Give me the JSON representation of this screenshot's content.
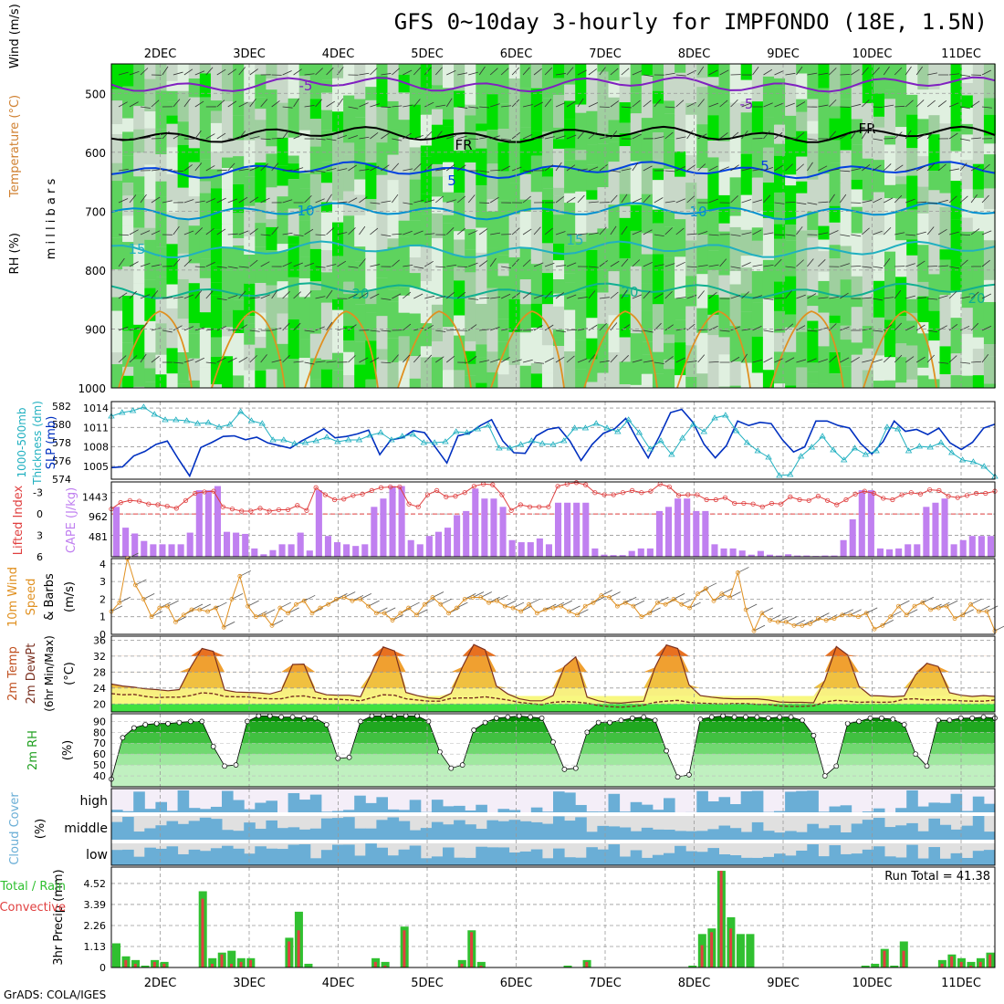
{
  "title": "GFS 0~10day 3-hourly for IMPFONDO (18E, 1.5N)",
  "credit": "GrADS: COLA/IGES",
  "dates": [
    "2DEC",
    "3DEC",
    "4DEC",
    "5DEC",
    "6DEC",
    "7DEC",
    "8DEC",
    "9DEC",
    "10DEC",
    "11DEC"
  ],
  "colors": {
    "rh_light": "#e0f0e0",
    "rh_mid": "#c8d8c8",
    "rh_green": "#5ed35e",
    "rh_bright": "#00e000",
    "cape": "#c080f0",
    "li": "#e04040",
    "slp": "#0030c0",
    "thick": "#20b0c0",
    "wind": "#e09020",
    "temp_hot": "#e05000",
    "temp_mid": "#f0a030",
    "temp_low": "#f8f080",
    "rh_dark": "#008000",
    "cloud": "#6aaed6",
    "precip": "#30c030",
    "conv": "#e04040"
  },
  "chart_data": [
    {
      "type": "heatmap",
      "name": "RH, Temperature, Wind",
      "ylabel": "millibars",
      "yticks": [
        500,
        600,
        700,
        800,
        900,
        1000
      ],
      "ylim": [
        1000,
        450
      ],
      "legend_labels": [
        "RH (%)",
        "Temperature (°C)",
        "Wind (m/s)"
      ],
      "contour_labels": [
        "-5",
        "FR",
        "5",
        "10",
        "15",
        "20"
      ],
      "isotherms": [
        {
          "label": "-5",
          "color": "#8020c0",
          "p_mean": 485
        },
        {
          "label": "FR",
          "color": "#000000",
          "p_mean": 570
        },
        {
          "label": "5",
          "color": "#0040e0",
          "p_mean": 630
        },
        {
          "label": "10",
          "color": "#0090d0",
          "p_mean": 700
        },
        {
          "label": "15",
          "color": "#20b0c0",
          "p_mean": 765
        },
        {
          "label": "20",
          "color": "#10b090",
          "p_mean": 835
        }
      ]
    },
    {
      "type": "line",
      "name": "SLP and 1000-500mb thickness",
      "ylabel_left": "1000-500mb Thickness (dm)",
      "ylabel_right": "SLP (mb)",
      "left_ticks": [
        574,
        576,
        578,
        580,
        582
      ],
      "right_ticks": [
        1005,
        1008,
        1011,
        1014
      ],
      "ylim_slp": [
        1003,
        1015
      ],
      "ylim_thick": [
        574,
        582.5
      ],
      "series": [
        {
          "name": "SLP",
          "values": [
            1004.8,
            1004.9,
            1006.6,
            1007.3,
            1008.4,
            1008.9,
            1006.1,
            1003.5,
            1007.9,
            1008.7,
            1009.6,
            1009.7,
            1009.1,
            1009.5,
            1008.6,
            1008.2,
            1007.8,
            1008.9,
            1009.8,
            1010.8,
            1009.4,
            1009.6,
            1010.0,
            1010.6,
            1006.8,
            1009.1,
            1009.4,
            1010.5,
            1010.2,
            1007.9,
            1005.5,
            1009.7,
            1010.1,
            1011.3,
            1012.2,
            1008.9,
            1007.1,
            1007.0,
            1009.7,
            1010.7,
            1011.0,
            1008.9,
            1005.9,
            1008.4,
            1010.1,
            1010.8,
            1012.4,
            1009.2,
            1006.3,
            1009.6,
            1013.3,
            1013.8,
            1011.8,
            1008.4,
            1006.3,
            1008.2,
            1012.0,
            1011.3,
            1011.8,
            1011.6,
            1009.1,
            1007.2,
            1008.0,
            1012.0,
            1012.0,
            1011.3,
            1010.9,
            1008.5,
            1006.9,
            1008.8,
            1012.0,
            1010.4,
            1010.7,
            1009.9,
            1010.9,
            1008.6,
            1007.6,
            1008.7,
            1010.9,
            1011.5
          ]
        },
        {
          "name": "Thickness",
          "values": [
            580.9,
            581.3,
            581.5,
            581.9,
            581.1,
            580.5,
            580.5,
            580.4,
            580.1,
            580.2,
            579.7,
            580.0,
            581.4,
            580.4,
            580.1,
            578.3,
            578.3,
            577.9,
            578.0,
            578.2,
            578.6,
            578.1,
            578.3,
            578.3,
            578.8,
            579.1,
            578.3,
            578.7,
            578.9,
            578.0,
            578.0,
            578.1,
            579.2,
            579.1,
            579.5,
            579.9,
            577.4,
            577.4,
            577.8,
            578.2,
            577.9,
            577.8,
            578.2,
            579.6,
            579.6,
            580.1,
            579.6,
            579.2,
            580.5,
            579.1,
            577.3,
            578.2,
            576.7,
            578.5,
            580.0,
            579.2,
            580.7,
            581.0,
            579.3,
            578.0,
            577.1,
            576.4,
            574.4,
            574.5,
            576.5,
            577.5,
            578.7,
            577.2,
            576.1,
            577.4,
            576.7,
            577.1,
            579.7,
            579.5,
            577.1,
            577.6,
            577.5,
            578.0,
            576.9,
            576.1,
            575.9,
            575.4,
            574.3
          ]
        }
      ]
    },
    {
      "type": "bar",
      "name": "Lifted Index and CAPE",
      "ylabel_left": "Lifted Index",
      "ylabel_right": "CAPE (J/kg)",
      "li_ticks": [
        -3,
        0,
        3,
        6
      ],
      "cape_ticks": [
        481,
        962,
        1443
      ],
      "cape_values": [
        1200,
        700,
        560,
        380,
        300,
        300,
        300,
        300,
        580,
        1600,
        1600,
        1700,
        600,
        580,
        550,
        200,
        60,
        160,
        300,
        300,
        580,
        150,
        1600,
        500,
        350,
        300,
        260,
        300,
        1200,
        1400,
        1700,
        1700,
        400,
        300,
        500,
        600,
        700,
        1000,
        1100,
        1640,
        1400,
        1400,
        1200,
        400,
        350,
        350,
        440,
        300,
        1300,
        1300,
        1300,
        1300,
        200,
        50,
        40,
        40,
        140,
        200,
        200,
        1100,
        1200,
        1400,
        1400,
        1100,
        1100,
        300,
        200,
        200,
        150,
        50,
        140,
        50,
        30,
        60,
        30,
        30,
        20,
        30,
        30,
        400,
        900,
        1600,
        1600,
        200,
        180,
        200,
        300,
        300,
        1200,
        1300,
        1400,
        300,
        400,
        500,
        500,
        500
      ],
      "li_values": [
        -0.7,
        -1.6,
        -1.9,
        -1.8,
        -1.4,
        -1.3,
        -1.1,
        -0.8,
        -1.9,
        -2.9,
        -3.1,
        -3.2,
        -1.0,
        -0.7,
        -0.4,
        -0.4,
        -0.8,
        -0.4,
        -0.6,
        -0.6,
        -1.2,
        -0.5,
        -3.7,
        -2.7,
        -2.0,
        -2.1,
        -2.6,
        -2.8,
        -3.3,
        -3.7,
        -3.8,
        -3.8,
        -1.4,
        -1.0,
        -2.7,
        -3.3,
        -2.4,
        -2.5,
        -3.0,
        -3.9,
        -4.2,
        -4.1,
        -2.7,
        -0.5,
        -1.3,
        -1.0,
        -1.0,
        -1.0,
        -3.9,
        -4.2,
        -4.4,
        -4.1,
        -3.0,
        -2.7,
        -2.7,
        -3.0,
        -3.3,
        -3.0,
        -3.2,
        -4.2,
        -3.8,
        -2.6,
        -2.7,
        -2.7,
        -2.0,
        -2.0,
        -2.3,
        -1.5,
        -1.5,
        -1.4,
        -1.0,
        -1.5,
        -1.4,
        -2.4,
        -2.0,
        -1.9,
        -2.5,
        -1.9,
        -1.3,
        -2.0,
        -2.8,
        -3.2,
        -2.9,
        -2.2,
        -2.0,
        -2.7,
        -3.0,
        -2.8,
        -3.4,
        -3.3,
        -2.5,
        -2.3,
        -2.6,
        -2.9,
        -2.9,
        -3.2
      ]
    },
    {
      "type": "line",
      "name": "10m Wind Speed & Barbs",
      "ylabel": "10m Wind Speed & Barbs (m/s)",
      "yticks": [
        0,
        1,
        2,
        3,
        4
      ],
      "ylim": [
        0,
        4.3
      ],
      "values": [
        1.3,
        1.8,
        4.3,
        2.8,
        2.0,
        1.0,
        1.5,
        1.6,
        0.7,
        1.1,
        1.4,
        1.4,
        1.3,
        1.5,
        0.4,
        2.0,
        3.3,
        1.6,
        1.0,
        1.1,
        0.5,
        1.5,
        1.2,
        1.7,
        1.9,
        1.2,
        1.5,
        1.7,
        2.0,
        2.1,
        1.9,
        2.0,
        1.6,
        1.2,
        1.2,
        0.8,
        1.2,
        1.5,
        1.1,
        1.7,
        2.1,
        1.7,
        1.2,
        1.5,
        2.0,
        2.1,
        2.1,
        1.8,
        1.9,
        1.6,
        1.5,
        1.3,
        1.7,
        1.2,
        1.4,
        1.5,
        1.6,
        1.3,
        1.1,
        1.6,
        1.8,
        2.2,
        2.1,
        1.6,
        1.8,
        1.6,
        1.0,
        1.2,
        1.8,
        1.7,
        2.0,
        1.7,
        1.5,
        2.3,
        2.6,
        1.9,
        2.3,
        2.1,
        3.5,
        1.4,
        0.2,
        1.2,
        0.8,
        0.7,
        0.7,
        0.5,
        0.5,
        0.6,
        0.9,
        0.8,
        0.9,
        1.1,
        1.1,
        1.0,
        1.2,
        0.3,
        0.5,
        1.0,
        1.6,
        1.1,
        1.6,
        1.8,
        1.4,
        1.5,
        1.6,
        0.9,
        1.1,
        1.7,
        1.3,
        1.3,
        0.2
      ]
    },
    {
      "type": "area",
      "name": "2m Temp, 2m DewPt (6hr Min/Max)",
      "ylabel": "2m Temp 2m DewPt (6hr Min/Max) (°C)",
      "yticks": [
        20,
        24,
        28,
        32,
        36
      ],
      "ylim": [
        18,
        37
      ],
      "temp": [
        25.0,
        24.5,
        24.2,
        23.8,
        23.6,
        23.3,
        23.6,
        29.2,
        33.9,
        33.2,
        23.5,
        23.0,
        22.9,
        22.8,
        22.5,
        23.3,
        29.9,
        30.0,
        23.1,
        22.3,
        22.2,
        22.2,
        21.8,
        27.9,
        34.3,
        33.3,
        22.9,
        22.1,
        21.5,
        21.3,
        22.7,
        29.3,
        34.9,
        33.6,
        24.5,
        22.5,
        21.3,
        20.8,
        20.8,
        22.1,
        29.4,
        31.8,
        21.7,
        20.8,
        20.3,
        20.2,
        20.5,
        20.7,
        29.2,
        34.8,
        33.9,
        24.8,
        22.1,
        21.7,
        21.4,
        21.3,
        21.3,
        21.3,
        21.0,
        20.5,
        20.4,
        20.4,
        20.3,
        26.0,
        34.4,
        32.3,
        24.4,
        22.1,
        22.0,
        21.8,
        22.0,
        27.3,
        30.2,
        29.4,
        22.8,
        22.2,
        21.9,
        22.1,
        21.9
      ],
      "dewpt": [
        22.6,
        22.3,
        22.4,
        21.9,
        21.6,
        21.7,
        21.7,
        22.1,
        22.8,
        22.6,
        21.9,
        21.8,
        21.8,
        21.4,
        21.3,
        21.3,
        21.9,
        22.0,
        21.5,
        21.2,
        21.2,
        21.0,
        20.8,
        21.6,
        22.3,
        22.2,
        21.3,
        21.0,
        20.7,
        20.7,
        21.4,
        21.5,
        21.5,
        21.8,
        21.4,
        21.0,
        20.4,
        20.1,
        19.8,
        20.4,
        20.6,
        20.5,
        20.2,
        19.6,
        19.3,
        19.2,
        19.4,
        19.7,
        20.4,
        20.7,
        20.9,
        20.4,
        20.2,
        20.1,
        20.0,
        20.1,
        20.1,
        19.9,
        19.9,
        19.5,
        19.4,
        19.4,
        19.5,
        20.5,
        20.9,
        20.7,
        20.4,
        20.5,
        20.4,
        20.5,
        21.2,
        21.3,
        21.0,
        21.1,
        21.0,
        20.8,
        20.7,
        20.7,
        21.0
      ]
    },
    {
      "type": "area",
      "name": "2m RH",
      "ylabel": "2m RH (%)",
      "yticks": [
        40,
        50,
        60,
        70,
        80,
        90
      ],
      "ylim": [
        30,
        97
      ],
      "values": [
        37,
        75,
        84,
        87,
        88,
        88,
        89,
        90,
        90,
        67,
        49,
        50,
        90,
        95,
        95,
        94,
        94,
        93,
        93,
        87,
        56,
        57,
        90,
        95,
        95,
        95,
        95,
        95,
        90,
        62,
        47,
        50,
        82,
        89,
        93,
        94,
        95,
        94,
        93,
        71,
        46,
        47,
        80,
        89,
        89,
        91,
        93,
        94,
        91,
        63,
        39,
        41,
        92,
        94,
        95,
        94,
        94,
        94,
        93,
        94,
        94,
        91,
        77,
        40,
        49,
        88,
        90,
        93,
        93,
        92,
        87,
        60,
        49,
        91,
        91,
        93,
        93,
        94,
        93
      ]
    },
    {
      "type": "heatmap",
      "name": "Cloud Cover",
      "ylabel": "Cloud Cover (%)",
      "levels": [
        "high",
        "middle",
        "low"
      ]
    },
    {
      "type": "bar",
      "name": "3hr Precip",
      "ylabel": "3hr Precip (mm)",
      "legend_labels": [
        "Total / Rain",
        "Convective"
      ],
      "run_total_label": "Run Total = 41.38",
      "yticks": [
        0,
        1.13,
        2.26,
        3.39,
        4.52
      ],
      "ylim": [
        0,
        5.4
      ],
      "total": [
        1.3,
        0.6,
        0.4,
        0.1,
        0.4,
        0.3,
        0,
        0,
        0,
        4.1,
        0.5,
        0.8,
        0.9,
        0.5,
        0.5,
        0,
        0,
        0,
        1.6,
        3.0,
        0.2,
        0,
        0,
        0,
        0,
        0,
        0,
        0.5,
        0.3,
        0,
        2.2,
        0,
        0,
        0,
        0,
        0,
        0.4,
        2.0,
        0.3,
        0,
        0,
        0,
        0,
        0,
        0,
        0,
        0,
        0.1,
        0,
        0.4,
        0,
        0,
        0,
        0,
        0,
        0,
        0,
        0,
        0,
        0,
        0.1,
        1.8,
        2.1,
        5.2,
        2.7,
        1.8,
        1.8,
        0,
        0,
        0,
        0,
        0,
        0,
        0,
        0,
        0,
        0,
        0,
        0.1,
        0.2,
        1.0,
        0.1,
        1.4,
        0,
        0,
        0,
        0.4,
        0.7,
        0.5,
        0.3,
        0.5,
        0.8
      ],
      "conv": [
        0,
        0.4,
        0.2,
        0,
        0.3,
        0.2,
        0,
        0,
        0,
        3.7,
        0.2,
        0.7,
        0.2,
        0.3,
        0.4,
        0,
        0,
        0,
        1.4,
        2.0,
        0,
        0,
        0,
        0,
        0,
        0,
        0,
        0.3,
        0.1,
        0,
        2.0,
        0,
        0,
        0,
        0,
        0,
        0.2,
        1.9,
        0.1,
        0,
        0,
        0,
        0,
        0,
        0,
        0,
        0,
        0,
        0,
        0.3,
        0,
        0,
        0,
        0,
        0,
        0,
        0,
        0,
        0,
        0,
        0,
        1.2,
        1.9,
        5.2,
        2.1,
        0,
        0,
        0,
        0,
        0,
        0,
        0,
        0,
        0,
        0,
        0,
        0,
        0,
        0,
        0,
        0.9,
        0,
        0.9,
        0,
        0,
        0,
        0.2,
        0.6,
        0.3,
        0.1,
        0.3,
        0.7
      ]
    }
  ]
}
